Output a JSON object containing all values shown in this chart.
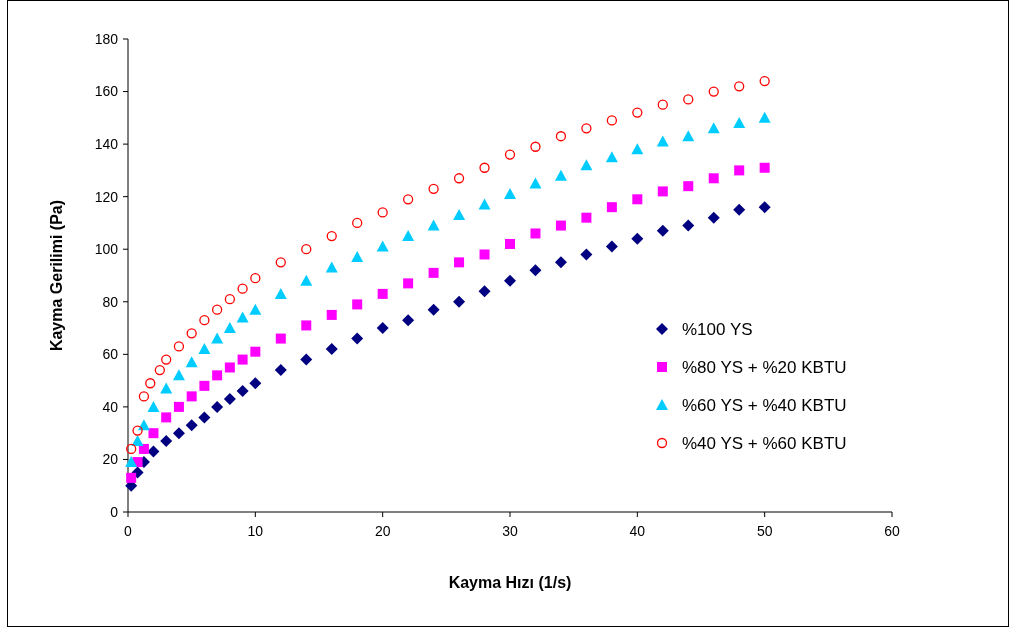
{
  "chart_data": {
    "type": "scatter",
    "xlabel": "Kayma Hızı (1/s)",
    "ylabel": "Kayma Gerilimi (Pa)",
    "xlim": [
      0,
      60
    ],
    "xticks": [
      0,
      10,
      20,
      30,
      40,
      50,
      60
    ],
    "ylim": [
      0,
      180
    ],
    "yticks": [
      0,
      20,
      40,
      60,
      80,
      100,
      120,
      140,
      160,
      180
    ],
    "grid": false,
    "legend": "right",
    "series": [
      {
        "name": "%100 YS",
        "color": "#000080",
        "marker": "diamond",
        "x": [
          0.25,
          0.75,
          1.25,
          2,
          3,
          4,
          5,
          6,
          7,
          8,
          9,
          10,
          12,
          14,
          16,
          18,
          20,
          22,
          24,
          26,
          28,
          30,
          32,
          34,
          36,
          38,
          40,
          42,
          44,
          46,
          48,
          50
        ],
        "values": [
          10,
          15,
          19,
          23,
          27,
          30,
          33,
          36,
          40,
          43,
          46,
          49,
          54,
          58,
          62,
          66,
          70,
          73,
          77,
          80,
          84,
          88,
          92,
          95,
          98,
          101,
          104,
          107,
          109,
          112,
          115,
          116
        ]
      },
      {
        "name": "%80 YS + %20 KBTU",
        "color": "#ff00ff",
        "marker": "square",
        "x": [
          0.25,
          0.75,
          1.25,
          2,
          3,
          4,
          5,
          6,
          7,
          8,
          9,
          10,
          12,
          14,
          16,
          18,
          20,
          22,
          24,
          26,
          28,
          30,
          32,
          34,
          36,
          38,
          40,
          42,
          44,
          46,
          48,
          50
        ],
        "values": [
          13,
          19,
          24,
          30,
          36,
          40,
          44,
          48,
          52,
          55,
          58,
          61,
          66,
          71,
          75,
          79,
          83,
          87,
          91,
          95,
          98,
          102,
          106,
          109,
          112,
          116,
          119,
          122,
          124,
          127,
          130,
          131
        ]
      },
      {
        "name": "%60 YS + %40 KBTU",
        "color": "#00ccff",
        "marker": "triangle",
        "x": [
          0.25,
          0.75,
          1.25,
          2,
          3,
          4,
          5,
          6,
          7,
          8,
          9,
          10,
          12,
          14,
          16,
          18,
          20,
          22,
          24,
          26,
          28,
          30,
          32,
          34,
          36,
          38,
          40,
          42,
          44,
          46,
          48,
          50
        ],
        "values": [
          19,
          27,
          33,
          40,
          47,
          52,
          57,
          62,
          66,
          70,
          74,
          77,
          83,
          88,
          93,
          97,
          101,
          105,
          109,
          113,
          117,
          121,
          125,
          128,
          132,
          135,
          138,
          141,
          143,
          146,
          148,
          150
        ]
      },
      {
        "name": "%40 YS + %60 KBTU",
        "color": "#ff0000",
        "marker": "circle",
        "x": [
          0.25,
          0.75,
          1.25,
          1.75,
          2.5,
          3,
          4,
          5,
          6,
          7,
          8,
          9,
          10,
          12,
          14,
          16,
          18,
          20,
          22,
          24,
          26,
          28,
          30,
          32,
          34,
          36,
          38,
          40,
          42,
          44,
          46,
          48,
          50
        ],
        "values": [
          24,
          31,
          44,
          49,
          54,
          58,
          63,
          68,
          73,
          77,
          81,
          85,
          89,
          95,
          100,
          105,
          110,
          114,
          119,
          123,
          127,
          131,
          136,
          139,
          143,
          146,
          149,
          152,
          155,
          157,
          160,
          162,
          164
        ]
      }
    ]
  }
}
